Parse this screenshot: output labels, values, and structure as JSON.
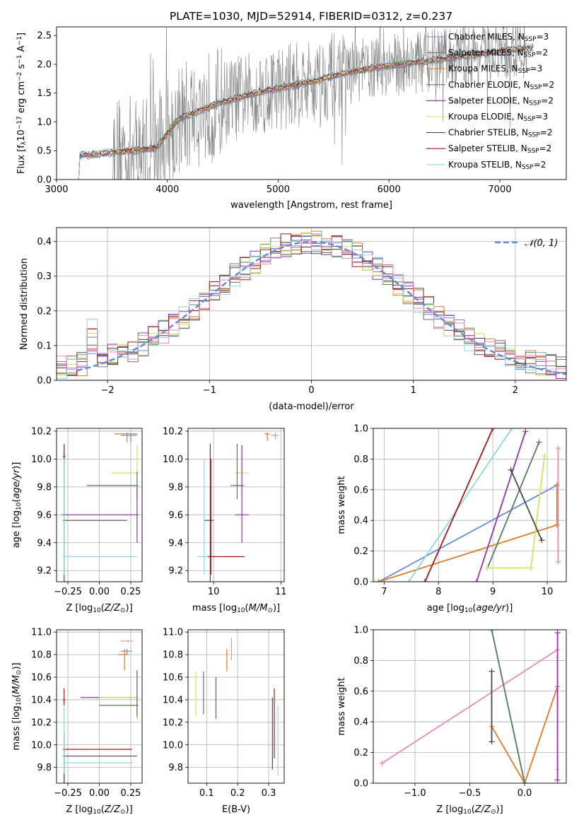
{
  "title": "PLATE=1030, MJD=52914, FIBERID=0312, z=0.237",
  "colors": {
    "Chabrier MILES": "#6a8bd8",
    "Salpeter MILES": "#7a7a7a",
    "Kroupa MILES": "#e07a2a",
    "Chabrier ELODIE": "#5a7a5a",
    "Salpeter ELODIE": "#9a2fb0",
    "Kroupa ELODIE": "#cfe65a",
    "Chabrier STELIB": "#4a4a4a",
    "Salpeter STELIB": "#a01818",
    "Kroupa STELIB": "#8fd8dc",
    "pink": "#e88ab8",
    "data": "#808080",
    "normal": "#6a8bd8"
  },
  "chart_data": [
    {
      "id": "spectrum",
      "type": "line",
      "title": "PLATE=1030, MJD=52914, FIBERID=0312, z=0.237",
      "xlabel": "wavelength [Angstrom, rest frame]",
      "ylabel": "Flux [f_λ 10^-17 erg cm^-2 s^-1 A^-1]",
      "xlim": [
        3000,
        7600
      ],
      "ylim": [
        0,
        2.65
      ],
      "xticks": [
        3000,
        4000,
        5000,
        6000,
        7000
      ],
      "yticks": [
        0.0,
        0.5,
        1.0,
        1.5,
        2.0,
        2.5
      ],
      "grid": false,
      "legend_position": "top-right",
      "legend": [
        {
          "name": "Chabrier MILES",
          "nssp": "3"
        },
        {
          "name": "Salpeter MILES",
          "nssp": "2"
        },
        {
          "name": "Kroupa MILES",
          "nssp": "3"
        },
        {
          "name": "Chabrier ELODIE",
          "nssp": "2"
        },
        {
          "name": "Salpeter ELODIE",
          "nssp": "2"
        },
        {
          "name": "Kroupa ELODIE",
          "nssp": "3"
        },
        {
          "name": "Chabrier STELIB",
          "nssp": "2"
        },
        {
          "name": "Salpeter STELIB",
          "nssp": "2"
        },
        {
          "name": "Kroupa STELIB",
          "nssp": "2"
        }
      ],
      "continuum": {
        "x": [
          3200,
          3350,
          3500,
          3700,
          3900,
          4000,
          4100,
          4300,
          4500,
          4700,
          4900,
          5100,
          5300,
          5500,
          5700,
          5900,
          6100,
          6300,
          6500,
          6700,
          6900,
          7100,
          7300
        ],
        "y": [
          0.42,
          0.44,
          0.47,
          0.5,
          0.55,
          0.8,
          1.05,
          1.2,
          1.35,
          1.45,
          1.55,
          1.62,
          1.7,
          1.8,
          1.88,
          1.95,
          2.0,
          2.05,
          2.1,
          2.15,
          2.2,
          2.25,
          2.3
        ]
      },
      "data_range": [
        3500,
        7250
      ]
    },
    {
      "id": "residuals",
      "type": "bar",
      "xlabel": "(data-model)/error",
      "ylabel": "Normed distribution",
      "xlim": [
        -2.5,
        2.5
      ],
      "ylim": [
        0,
        0.44
      ],
      "xticks": [
        -2,
        -1,
        0,
        1,
        2
      ],
      "yticks": [
        0.0,
        0.1,
        0.2,
        0.3,
        0.4
      ],
      "grid": true,
      "legend": [
        {
          "name": "𝒩(0, 1)"
        }
      ],
      "legend_position": "top-right"
    },
    {
      "id": "age-vs-Z",
      "type": "scatter",
      "xlabel": "Z [log10(Z/Z⊙)]",
      "ylabel": "age  [log10(age/yr)]",
      "xlim": [
        -0.34,
        0.34
      ],
      "ylim": [
        9.12,
        10.22
      ],
      "xticks": [
        -0.25,
        0.0,
        0.25
      ],
      "yticks": [
        9.2,
        9.4,
        9.6,
        9.8,
        10.0,
        10.2
      ],
      "grid": true,
      "errorbars": [
        {
          "series": "Chabrier MILES",
          "x": 0.25,
          "xerr": [
            0.08,
            0.05
          ],
          "y": 10.17,
          "yerr": [
            0.05,
            0.01
          ]
        },
        {
          "series": "Kroupa MILES",
          "x": 0.22,
          "xerr": [
            0.1,
            0.08
          ],
          "y": 10.18,
          "yerr": [
            0.06,
            0.01
          ]
        },
        {
          "series": "Salpeter STELIB",
          "x": -0.28,
          "xerr": [
            0.01,
            0.01
          ],
          "y": 10.02,
          "yerr": [
            0.05,
            0.08
          ]
        },
        {
          "series": "Kroupa ELODIE",
          "x": 0.3,
          "xerr": [
            0.2,
            0.01
          ],
          "y": 9.9,
          "yerr": [
            0.2,
            0.2
          ]
        },
        {
          "series": "Chabrier ELODIE",
          "x": 0.3,
          "xerr": [
            0.4,
            0.01
          ],
          "y": 9.81,
          "yerr": [
            0.1,
            0.1
          ]
        },
        {
          "series": "Salpeter ELODIE",
          "x": 0.3,
          "xerr": [
            0.6,
            0.01
          ],
          "y": 9.6,
          "yerr": [
            0.2,
            0.2
          ]
        },
        {
          "series": "Chabrier STELIB",
          "x": -0.28,
          "xerr": [
            0.01,
            0.5
          ],
          "y": 9.56,
          "yerr": [
            0.45,
            0.55
          ]
        },
        {
          "series": "Kroupa STELIB",
          "x": -0.28,
          "xerr": [
            0.01,
            0.58
          ],
          "y": 9.3,
          "yerr": [
            0.13,
            0.7
          ]
        }
      ]
    },
    {
      "id": "age-vs-mass",
      "type": "scatter",
      "xlabel": "mass [log10(M/M⊙)]",
      "ylabel": "",
      "xlim": [
        9.62,
        11.05
      ],
      "ylim": [
        9.12,
        10.22
      ],
      "xticks": [
        10,
        11
      ],
      "yticks": [
        9.2,
        9.4,
        9.6,
        9.8,
        10.0,
        10.2
      ],
      "grid": true,
      "errorbars": [
        {
          "series": "pink",
          "x": 10.92,
          "xerr": [
            0.07,
            0.05
          ],
          "y": 10.17,
          "yerr": [
            0.03,
            0.02
          ]
        },
        {
          "series": "Kroupa MILES",
          "x": 10.8,
          "xerr": [
            0.04,
            0.03
          ],
          "y": 10.18,
          "yerr": [
            0.05,
            0.01
          ]
        },
        {
          "series": "Chabrier STELIB",
          "x": 9.95,
          "xerr": [
            0.1,
            0.05
          ],
          "y": 9.56,
          "yerr": [
            0.45,
            0.55
          ]
        },
        {
          "series": "Kroupa ELODIE",
          "x": 10.42,
          "xerr": [
            0.1,
            0.1
          ],
          "y": 9.9,
          "yerr": [
            0.2,
            0.2
          ]
        },
        {
          "series": "Chabrier ELODIE",
          "x": 10.35,
          "xerr": [
            0.1,
            0.1
          ],
          "y": 9.81,
          "yerr": [
            0.1,
            0.3
          ]
        },
        {
          "series": "Salpeter ELODIE",
          "x": 10.42,
          "xerr": [
            0.1,
            0.1
          ],
          "y": 9.6,
          "yerr": [
            0.2,
            0.5
          ]
        },
        {
          "series": "Salpeter STELIB",
          "x": 9.96,
          "xerr": [
            0.05,
            0.5
          ],
          "y": 9.3,
          "yerr": [
            0.13,
            0.7
          ]
        },
        {
          "series": "Kroupa STELIB",
          "x": 9.86,
          "xerr": [
            0.1,
            0.05
          ],
          "y": 9.3,
          "yerr": [
            0.13,
            0.7
          ]
        }
      ]
    },
    {
      "id": "weight-vs-age",
      "type": "line",
      "xlabel": "age  [log10(age/yr)]",
      "ylabel": "mass weight",
      "xlim": [
        6.8,
        10.35
      ],
      "ylim": [
        0,
        1
      ],
      "xticks": [
        7,
        8,
        9,
        10
      ],
      "yticks": [
        0.0,
        0.2,
        0.4,
        0.6,
        0.8,
        1.0
      ],
      "grid": true,
      "series": [
        {
          "name": "Chabrier MILES",
          "x": [
            6.9,
            10.18
          ],
          "y": [
            0.0,
            0.63
          ]
        },
        {
          "name": "Kroupa MILES",
          "x": [
            6.9,
            10.18,
            10.18
          ],
          "y": [
            0.0,
            0.37,
            0.63
          ]
        },
        {
          "name": "Kroupa STELIB",
          "x": [
            7.45,
            9.35
          ],
          "y": [
            0.0,
            1.0
          ]
        },
        {
          "name": "Salpeter STELIB",
          "x": [
            7.75,
            9.0
          ],
          "y": [
            0.0,
            1.0
          ]
        },
        {
          "name": "Salpeter ELODIE",
          "x": [
            8.7,
            9.6
          ],
          "y": [
            0.0,
            0.98
          ]
        },
        {
          "name": "Chabrier ELODIE",
          "x": [
            8.9,
            9.85
          ],
          "y": [
            0.09,
            0.91
          ]
        },
        {
          "name": "Kroupa ELODIE",
          "x": [
            8.9,
            9.7,
            9.95
          ],
          "y": [
            0.09,
            0.09,
            0.82
          ]
        },
        {
          "name": "Chabrier STELIB",
          "x": [
            9.33,
            9.9
          ],
          "y": [
            0.73,
            0.27
          ]
        },
        {
          "name": "pink",
          "x": [
            10.2,
            10.2
          ],
          "y": [
            0.13,
            0.87
          ]
        }
      ]
    },
    {
      "id": "mass-vs-Z",
      "type": "scatter",
      "xlabel": "Z [log10(Z/Z⊙)]",
      "ylabel": "mass [log10(M/M⊙)]",
      "xlim": [
        -0.34,
        0.34
      ],
      "ylim": [
        9.66,
        11.02
      ],
      "xticks": [
        -0.25,
        0.0,
        0.25
      ],
      "yticks": [
        9.8,
        10.0,
        10.2,
        10.4,
        10.6,
        10.8,
        11.0
      ],
      "grid": true,
      "errorbars": [
        {
          "series": "pink",
          "x": 0.23,
          "xerr": [
            0.06,
            0.04
          ],
          "y": 10.92,
          "yerr": [
            0.01,
            0.01
          ]
        },
        {
          "series": "Chabrier MILES",
          "x": 0.22,
          "xerr": [
            0.05,
            0.04
          ],
          "y": 10.83,
          "yerr": [
            0.03,
            0.02
          ]
        },
        {
          "series": "Kroupa MILES",
          "x": 0.2,
          "xerr": [
            0.05,
            0.03
          ],
          "y": 10.8,
          "yerr": [
            0.14,
            0.05
          ]
        },
        {
          "series": "Salpeter STELIB",
          "x": -0.28,
          "xerr": [
            0.01,
            0.01
          ],
          "y": 10.4,
          "yerr": [
            0.05,
            0.1
          ]
        },
        {
          "series": "Salpeter ELODIE",
          "x": 0.3,
          "xerr": [
            0.45,
            0.01
          ],
          "y": 10.42,
          "yerr": [
            0.18,
            0.24
          ]
        },
        {
          "series": "Kroupa ELODIE",
          "x": 0.3,
          "xerr": [
            0.3,
            0.01
          ],
          "y": 10.42,
          "yerr": [
            0.2,
            0.2
          ]
        },
        {
          "series": "Chabrier ELODIE",
          "x": 0.3,
          "xerr": [
            0.3,
            0.01
          ],
          "y": 10.35,
          "yerr": [
            0.1,
            0.3
          ]
        },
        {
          "series": "Salpeter STELIB",
          "x": -0.28,
          "xerr": [
            0.01,
            0.54
          ],
          "y": 9.96,
          "yerr": [
            0.3,
            0.15
          ]
        },
        {
          "series": "Chabrier STELIB",
          "x": -0.28,
          "xerr": [
            0.01,
            0.58
          ],
          "y": 9.9,
          "yerr": [
            0.3,
            0.1
          ]
        },
        {
          "series": "Kroupa STELIB",
          "x": -0.28,
          "xerr": [
            0.01,
            0.55
          ],
          "y": 9.84,
          "yerr": [
            0.1,
            0.5
          ]
        }
      ]
    },
    {
      "id": "mass-vs-EBV",
      "type": "scatter",
      "xlabel": "E(B-V)",
      "ylabel": "",
      "xlim": [
        0.04,
        0.35
      ],
      "ylim": [
        9.66,
        11.02
      ],
      "xticks": [
        0.1,
        0.2,
        0.3
      ],
      "yticks": [
        9.8,
        10.0,
        10.2,
        10.4,
        10.6,
        10.8,
        11.0
      ],
      "grid": true,
      "errorbars": [
        {
          "series": "pink",
          "x": 0.18,
          "yerr": [
            10.75,
            10.95
          ]
        },
        {
          "series": "Kroupa MILES",
          "x": 0.165,
          "yerr": [
            10.65,
            10.85
          ]
        },
        {
          "series": "Kroupa ELODIE",
          "x": 0.065,
          "yerr": [
            10.25,
            10.65
          ]
        },
        {
          "series": "Chabrier ELODIE",
          "x": 0.09,
          "yerr": [
            10.27,
            10.65
          ]
        },
        {
          "series": "Salpeter ELODIE",
          "x": 0.13,
          "yerr": [
            10.23,
            10.6
          ]
        },
        {
          "series": "Salpeter STELIB",
          "x": 0.318,
          "yerr": [
            9.88,
            10.5
          ]
        },
        {
          "series": "Chabrier STELIB",
          "x": 0.312,
          "yerr": [
            9.78,
            10.42
          ]
        },
        {
          "series": "Kroupa STELIB",
          "x": 0.33,
          "yerr": [
            9.72,
            10.35
          ]
        }
      ]
    },
    {
      "id": "weight-vs-Z",
      "type": "line",
      "xlabel": "Z [log10(Z/Z⊙)]",
      "ylabel": "mass weight",
      "xlim": [
        -1.38,
        0.38
      ],
      "ylim": [
        0,
        1
      ],
      "xticks": [
        -1.0,
        -0.5,
        0.0
      ],
      "yticks": [
        0.0,
        0.2,
        0.4,
        0.6,
        0.8,
        1.0
      ],
      "grid": true,
      "series": [
        {
          "name": "pink",
          "x": [
            -1.3,
            0.3
          ],
          "y": [
            0.13,
            0.87
          ]
        },
        {
          "name": "Kroupa MILES",
          "x": [
            -0.3,
            0.0,
            0.3
          ],
          "y": [
            0.37,
            0.0,
            0.63
          ]
        },
        {
          "name": "Chabrier STELIB",
          "x": [
            -0.3,
            -0.3
          ],
          "y": [
            0.27,
            0.73
          ]
        },
        {
          "name": "Kroupa STELIB",
          "x": [
            -0.3,
            0.0
          ],
          "y": [
            1.0,
            0.0
          ]
        },
        {
          "name": "Chabrier ELODIE",
          "x": [
            -0.3,
            0.0
          ],
          "y": [
            1.0,
            0.0
          ]
        },
        {
          "name": "Kroupa ELODIE",
          "x": [
            0.3,
            0.3
          ],
          "y": [
            0.09,
            0.82
          ]
        },
        {
          "name": "Salpeter ELODIE",
          "x": [
            0.3,
            0.3
          ],
          "y": [
            0.02,
            0.98
          ]
        }
      ]
    }
  ]
}
